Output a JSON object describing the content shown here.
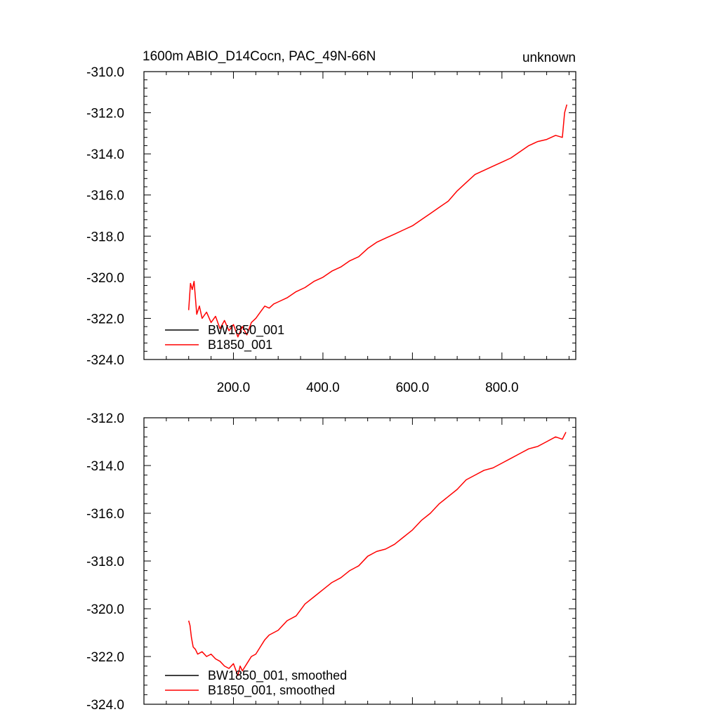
{
  "colors": {
    "bw": "#000000",
    "b": "#ff0000",
    "axis": "#000000",
    "background": "#ffffff"
  },
  "chart_data": [
    {
      "type": "line",
      "title_left": "1600m ABIO_D14Cocn, PAC_49N-66N",
      "title_right": "unknown",
      "xlabel": "",
      "ylabel": "",
      "xlim": [
        0,
        965
      ],
      "ylim": [
        -324,
        -310
      ],
      "x_ticks": [
        200,
        400,
        600,
        800
      ],
      "x_tick_labels": [
        "200.0",
        "400.0",
        "600.0",
        "800.0"
      ],
      "y_ticks": [
        -310,
        -312,
        -314,
        -316,
        -318,
        -320,
        -322,
        -324
      ],
      "y_tick_labels": [
        "-310.0",
        "-312.0",
        "-314.0",
        "-316.0",
        "-318.0",
        "-320.0",
        "-322.0",
        "-324.0"
      ],
      "legend": [
        "BW1850_001",
        "B1850_001"
      ],
      "legend_position": "bottom-left",
      "series": [
        {
          "name": "BW1850_001",
          "color": "#000000",
          "x": [],
          "y": []
        },
        {
          "name": "B1850_001",
          "color": "#ff0000",
          "x": [
            100,
            104,
            108,
            112,
            118,
            124,
            130,
            140,
            150,
            160,
            170,
            180,
            190,
            200,
            210,
            220,
            230,
            240,
            250,
            260,
            270,
            280,
            290,
            300,
            320,
            340,
            360,
            380,
            400,
            420,
            440,
            460,
            480,
            500,
            520,
            540,
            560,
            580,
            600,
            620,
            640,
            660,
            680,
            700,
            720,
            740,
            760,
            780,
            800,
            820,
            840,
            860,
            880,
            900,
            920,
            935,
            940,
            945
          ],
          "y": [
            -321.6,
            -320.3,
            -320.6,
            -320.2,
            -321.8,
            -321.4,
            -322.0,
            -321.7,
            -322.2,
            -321.9,
            -322.5,
            -322.1,
            -322.6,
            -322.3,
            -322.9,
            -322.4,
            -322.8,
            -322.2,
            -322.0,
            -321.7,
            -321.4,
            -321.5,
            -321.3,
            -321.2,
            -321.0,
            -320.7,
            -320.5,
            -320.2,
            -320.0,
            -319.7,
            -319.5,
            -319.2,
            -319.0,
            -318.6,
            -318.3,
            -318.1,
            -317.9,
            -317.7,
            -317.5,
            -317.2,
            -316.9,
            -316.6,
            -316.3,
            -315.8,
            -315.4,
            -315.0,
            -314.8,
            -314.6,
            -314.4,
            -314.2,
            -313.9,
            -313.6,
            -313.4,
            -313.3,
            -313.1,
            -313.2,
            -312.0,
            -311.6
          ]
        }
      ]
    },
    {
      "type": "line",
      "title_left": "",
      "title_right": "",
      "xlabel": "",
      "ylabel": "",
      "xlim": [
        0,
        965
      ],
      "ylim": [
        -324,
        -312
      ],
      "x_ticks": [
        200,
        400,
        600,
        800
      ],
      "x_tick_labels": [],
      "y_ticks": [
        -312,
        -314,
        -316,
        -318,
        -320,
        -322,
        -324
      ],
      "y_tick_labels": [
        "-312.0",
        "-314.0",
        "-316.0",
        "-318.0",
        "-320.0",
        "-322.0",
        "-324.0"
      ],
      "legend": [
        "BW1850_001, smoothed",
        "B1850_001, smoothed"
      ],
      "legend_position": "bottom-left",
      "series": [
        {
          "name": "BW1850_001, smoothed",
          "color": "#000000",
          "x": [],
          "y": []
        },
        {
          "name": "B1850_001, smoothed",
          "color": "#ff0000",
          "x": [
            100,
            103,
            106,
            110,
            115,
            120,
            130,
            140,
            150,
            160,
            170,
            180,
            190,
            200,
            210,
            215,
            220,
            230,
            240,
            250,
            260,
            270,
            280,
            290,
            300,
            320,
            340,
            360,
            380,
            400,
            420,
            440,
            460,
            480,
            500,
            520,
            540,
            560,
            580,
            600,
            620,
            640,
            660,
            680,
            700,
            720,
            740,
            760,
            780,
            800,
            820,
            840,
            860,
            880,
            900,
            920,
            935,
            943
          ],
          "y": [
            -320.5,
            -320.7,
            -321.2,
            -321.6,
            -321.7,
            -321.9,
            -321.8,
            -322.0,
            -321.9,
            -322.1,
            -322.2,
            -322.4,
            -322.5,
            -322.3,
            -322.8,
            -322.4,
            -322.6,
            -322.3,
            -322.0,
            -321.9,
            -321.6,
            -321.3,
            -321.1,
            -321.0,
            -320.9,
            -320.5,
            -320.3,
            -319.8,
            -319.5,
            -319.2,
            -318.9,
            -318.7,
            -318.4,
            -318.2,
            -317.8,
            -317.6,
            -317.5,
            -317.3,
            -317.0,
            -316.7,
            -316.3,
            -316.0,
            -315.6,
            -315.3,
            -315.0,
            -314.6,
            -314.4,
            -314.2,
            -314.1,
            -313.9,
            -313.7,
            -313.5,
            -313.3,
            -313.2,
            -313.0,
            -312.8,
            -312.9,
            -312.6
          ]
        }
      ]
    }
  ]
}
